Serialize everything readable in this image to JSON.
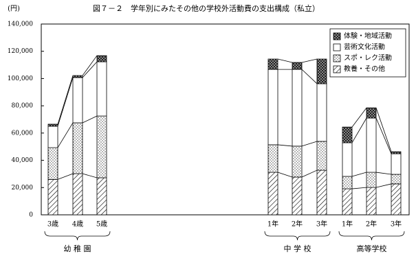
{
  "chart_data": {
    "type": "stacked-bar",
    "title": "図７－２　学年別にみたその他の学校外活動費の支出構成（私立）",
    "y_label": "(円)",
    "categories": [
      "3歳",
      "4歳",
      "5歳",
      "1年",
      "2年",
      "3年",
      "1年",
      "2年",
      "3年"
    ],
    "groups": [
      {
        "label": "幼 稚 園",
        "range": [
          0,
          2
        ]
      },
      {
        "label": "中 学 校",
        "range": [
          3,
          5
        ]
      },
      {
        "label": "高等学校",
        "range": [
          6,
          8
        ]
      }
    ],
    "series": [
      {
        "name": "教養・その他",
        "values": [
          26000,
          30200,
          27200,
          31200,
          27700,
          32700,
          19100,
          20100,
          22700
        ]
      },
      {
        "name": "スポ・レク活動",
        "values": [
          23300,
          37300,
          45300,
          20200,
          22700,
          21200,
          9100,
          11100,
          7000
        ]
      },
      {
        "name": "芸術文化活動",
        "values": [
          15700,
          33200,
          39800,
          55300,
          56300,
          42300,
          24700,
          39800,
          15100
        ]
      },
      {
        "name": "体験・地域活動",
        "values": [
          1500,
          1500,
          4500,
          7600,
          5100,
          18100,
          11500,
          7500,
          1500
        ]
      }
    ],
    "ylim": [
      0,
      140000
    ],
    "yticks": [
      0,
      {
        "value": 20000,
        "label": "20,000"
      },
      {
        "value": 40000,
        "label": "40,000"
      },
      {
        "value": 60000,
        "label": "60,000"
      },
      {
        "value": 80000,
        "label": "80,000"
      },
      {
        "value": 100000,
        "label": "100,000"
      },
      {
        "value": 120000,
        "label": "120,000"
      },
      {
        "value": 140000,
        "label": "140,000"
      }
    ],
    "legend": "top-right"
  }
}
